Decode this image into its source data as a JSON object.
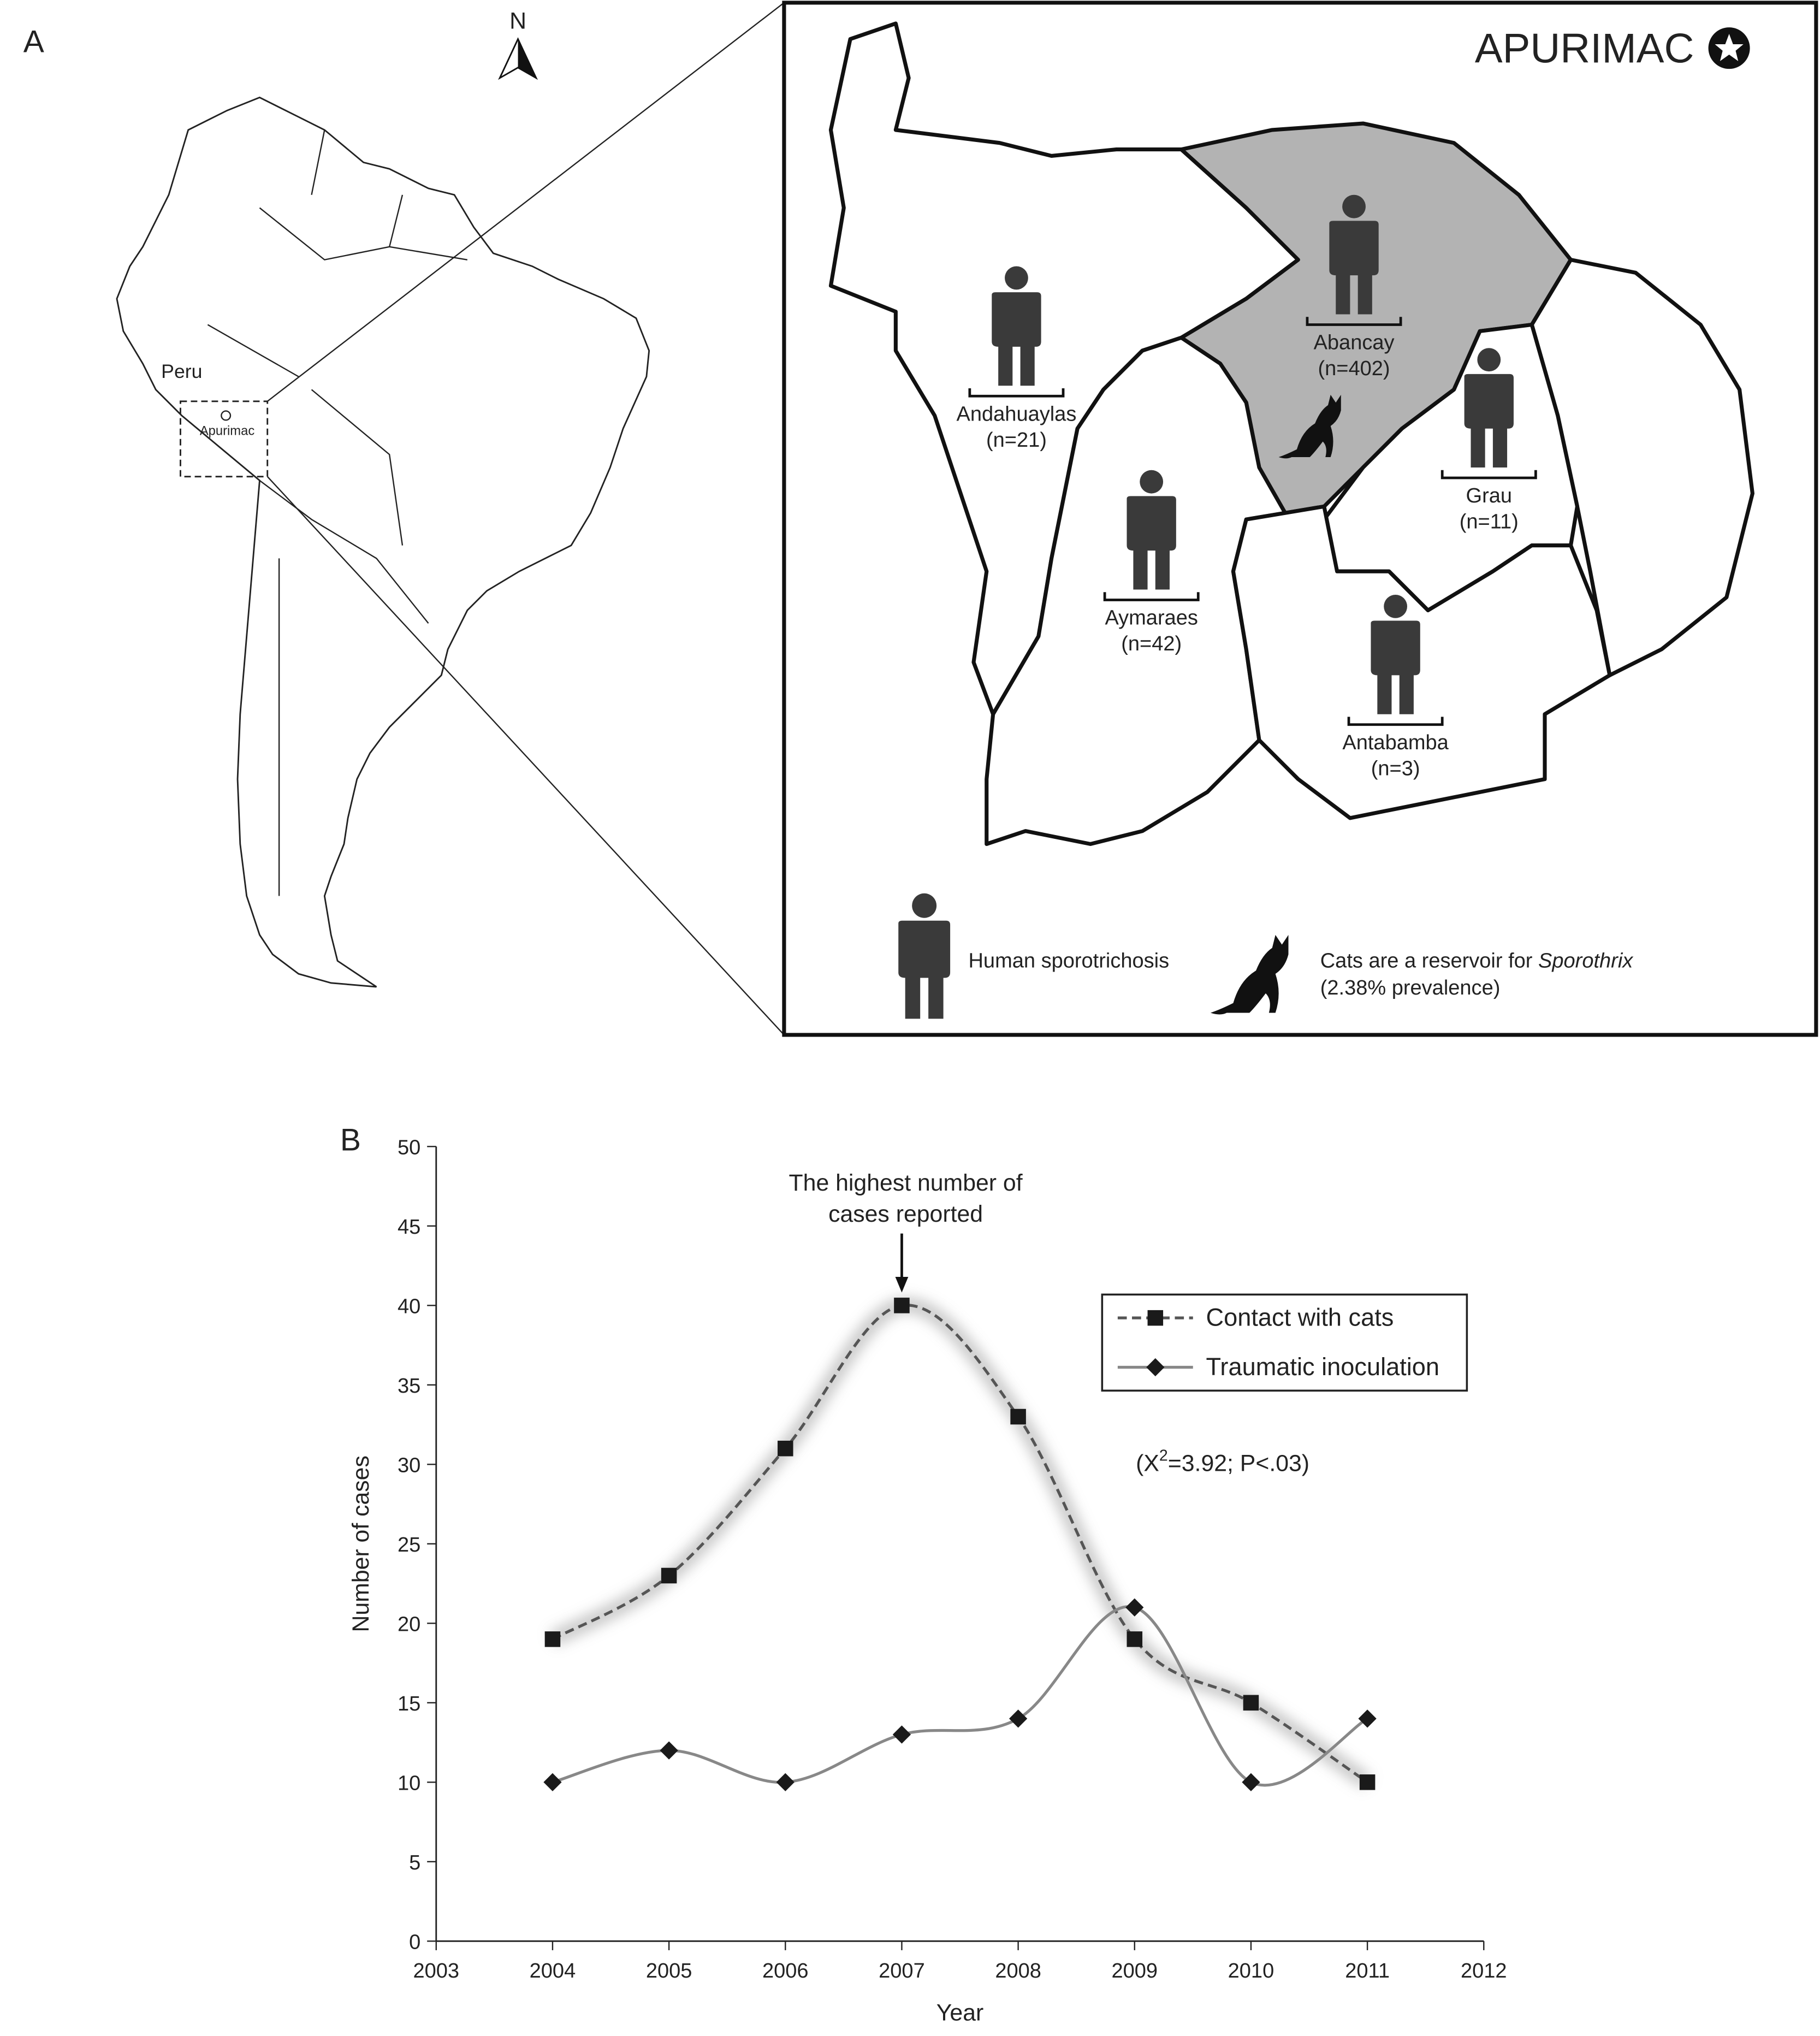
{
  "panel_a": {
    "label": "A",
    "north": "N",
    "country": "Peru",
    "region_marker": "Apurimac",
    "title": "APURIMAC",
    "provinces": [
      {
        "name": "Andahuaylas",
        "count": "(n=21)"
      },
      {
        "name": "Abancay",
        "count": "(n=402)"
      },
      {
        "name": "Aymaraes",
        "count": "(n=42)"
      },
      {
        "name": "Grau",
        "count": "(n=11)"
      },
      {
        "name": "Antabamba",
        "count": "(n=3)"
      }
    ],
    "legend": {
      "human": "Human sporotrichosis",
      "cat_text": "Cats are a reservoir for",
      "cat_genus": "Sporothrix",
      "cat_prevalence": "(2.38% prevalence)"
    }
  },
  "chart_data": {
    "type": "line",
    "panel_label": "B",
    "x_label": "Year",
    "y_label": "Number of cases",
    "annotation": [
      "The highest number of",
      "cases reported"
    ],
    "statistic": {
      "before": "(X",
      "sup": "2",
      "after": "=3.92; P<.03)"
    },
    "x": [
      2004,
      2005,
      2006,
      2007,
      2008,
      2009,
      2010,
      2011
    ],
    "series": [
      {
        "name": "Contact with cats",
        "color": "#555555",
        "marker": "square",
        "dash": true,
        "values": [
          19,
          23,
          31,
          40,
          33,
          19,
          15,
          10
        ]
      },
      {
        "name": "Traumatic inoculation",
        "color": "#888888",
        "marker": "diamond",
        "dash": false,
        "values": [
          10,
          12,
          10,
          13,
          14,
          21,
          10,
          14
        ]
      }
    ],
    "xlim": [
      2003,
      2012
    ],
    "xticks": [
      2003,
      2004,
      2005,
      2006,
      2007,
      2008,
      2009,
      2010,
      2011,
      2012
    ],
    "ylim": [
      0,
      50
    ],
    "yticks": [
      0,
      5,
      10,
      15,
      20,
      25,
      30,
      35,
      40,
      45,
      50
    ],
    "legend": "upper right"
  }
}
